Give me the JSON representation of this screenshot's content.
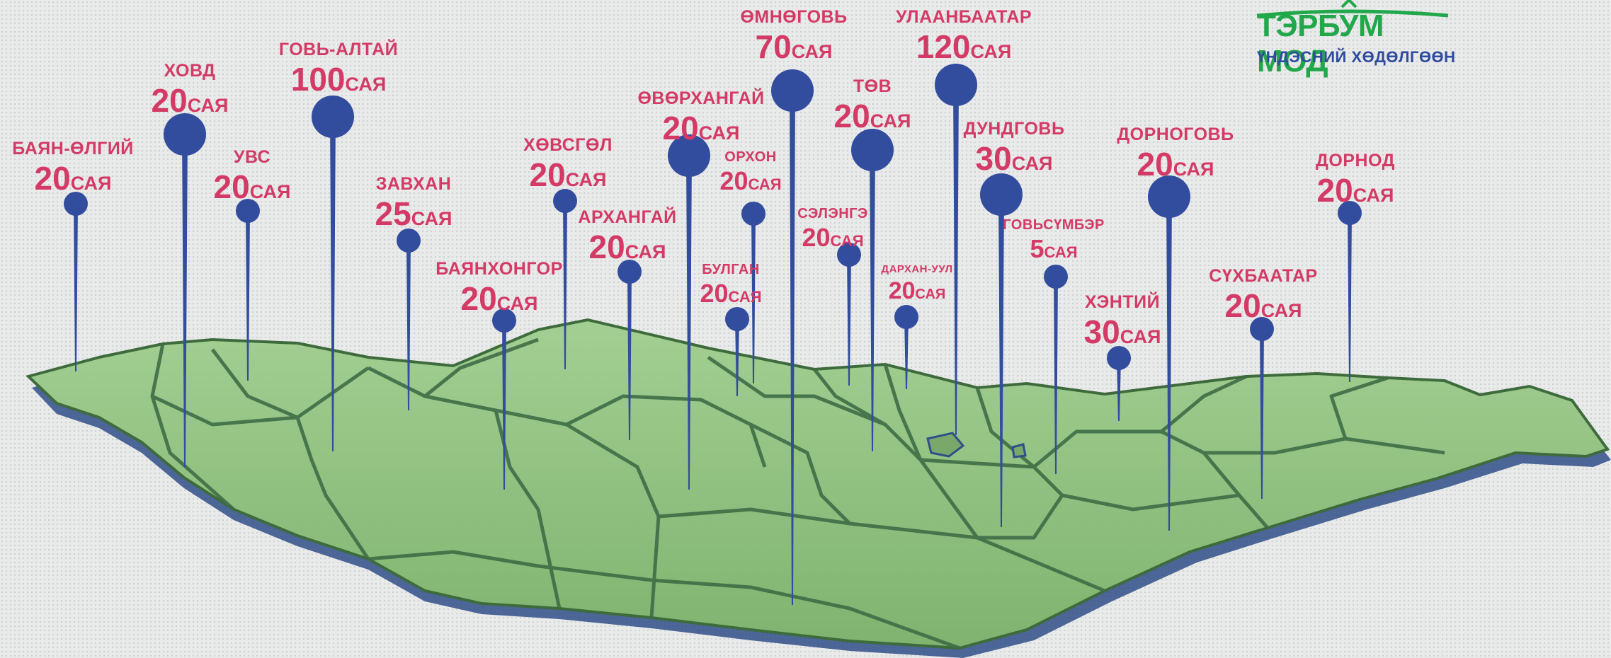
{
  "logo": {
    "title": "ТЭРБУМ МОД",
    "subtitle": "ҮНДЭСНИЙ ХӨДӨЛГӨӨН",
    "icon": "tree-crown-icon"
  },
  "colors": {
    "label": "#d43a66",
    "pin": "#324c9e",
    "map_fill": "#8fc07e",
    "map_edge": "#3e6b3b",
    "map_shadow": "#2f4f88",
    "logo_green": "#20a84a",
    "logo_blue": "#2f4b9e"
  },
  "unit": "САЯ",
  "provinces": [
    {
      "id": "bayan-olgii",
      "name": "БАЯН-ӨЛГИЙ",
      "value": "20"
    },
    {
      "id": "khovd",
      "name": "ХОВД",
      "value": "20"
    },
    {
      "id": "uvs",
      "name": "УВС",
      "value": "20"
    },
    {
      "id": "govi-altai",
      "name": "ГОВЬ-АЛТАЙ",
      "value": "100"
    },
    {
      "id": "zavkhan",
      "name": "ЗАВХАН",
      "value": "25"
    },
    {
      "id": "bayankhongor",
      "name": "БАЯНХОНГОР",
      "value": "20"
    },
    {
      "id": "khovsgol",
      "name": "ХӨВСГӨЛ",
      "value": "20"
    },
    {
      "id": "arkhangai",
      "name": "АРХАНГАЙ",
      "value": "20"
    },
    {
      "id": "ovorkhangai",
      "name": "ӨВӨРХАНГАЙ",
      "value": "20"
    },
    {
      "id": "orkhon",
      "name": "ОРХОН",
      "value": "20"
    },
    {
      "id": "bulgan",
      "name": "БУЛГАН",
      "value": "20"
    },
    {
      "id": "omnogovi",
      "name": "ӨМНӨГОВЬ",
      "value": "70"
    },
    {
      "id": "selenge",
      "name": "СЭЛЭНГЭ",
      "value": "20"
    },
    {
      "id": "tov",
      "name": "ТӨВ",
      "value": "20"
    },
    {
      "id": "darkhan-uul",
      "name": "ДАРХАН-УУЛ",
      "value": "20"
    },
    {
      "id": "ulaanbaatar",
      "name": "УЛААНБААТАР",
      "value": "120"
    },
    {
      "id": "dundgovi",
      "name": "ДУНДГОВЬ",
      "value": "30"
    },
    {
      "id": "govisumber",
      "name": "ГОВЬСҮМБЭР",
      "value": "5"
    },
    {
      "id": "khentii",
      "name": "ХЭНТИЙ",
      "value": "30"
    },
    {
      "id": "dornogovi",
      "name": "ДОРНОГОВЬ",
      "value": "20"
    },
    {
      "id": "sukhbaatar",
      "name": "СҮХБААТАР",
      "value": "20"
    },
    {
      "id": "dornod",
      "name": "ДОРНОД",
      "value": "20"
    }
  ]
}
